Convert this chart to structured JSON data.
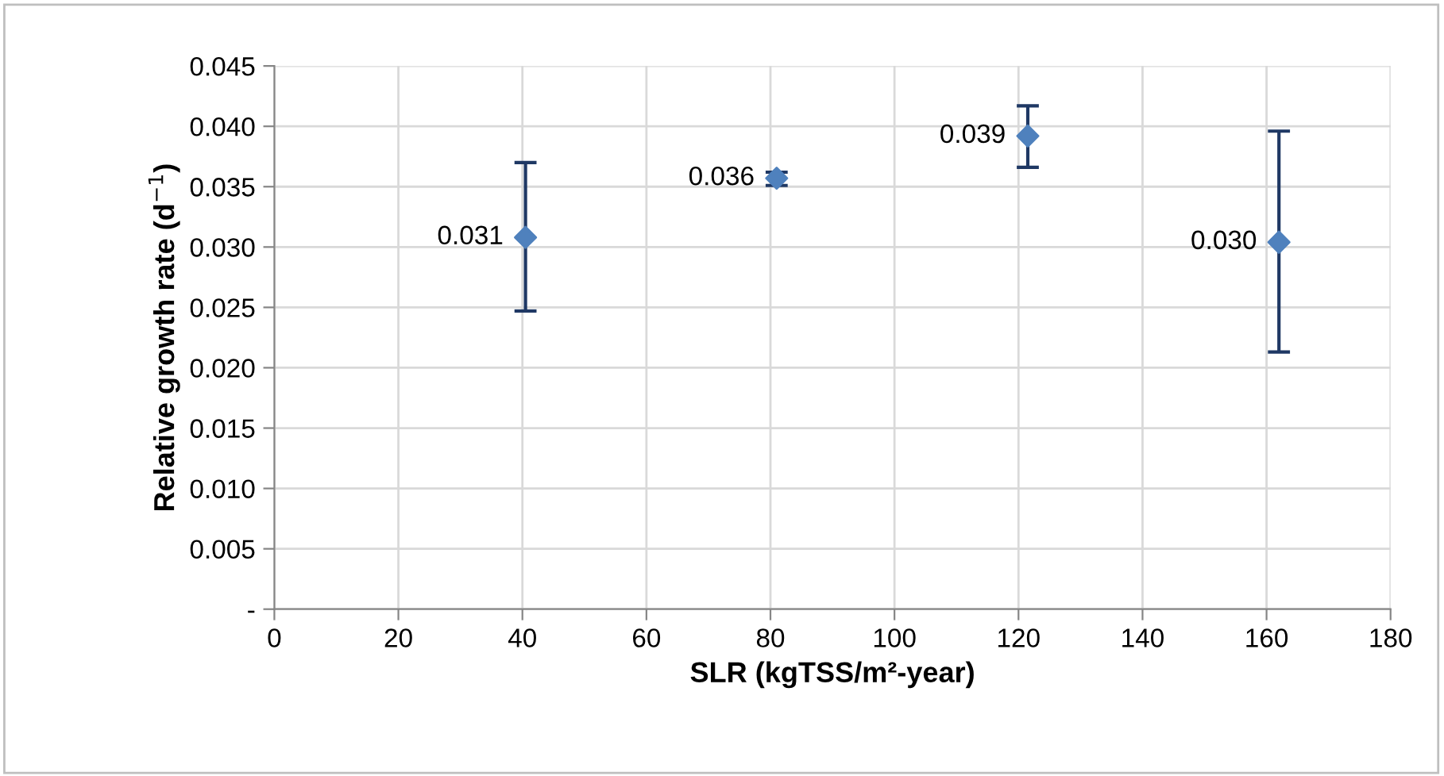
{
  "chart_data": {
    "type": "scatter",
    "xlabel": "SLR (kgTSS/m²-year)",
    "ylabel": "Relative growth rate (d$^{−1}$)",
    "x": [
      40.5,
      81.0,
      121.5,
      162.0
    ],
    "series": [
      {
        "color": "#4f81bd",
        "values": [
          0.0308,
          0.0357,
          0.0392,
          0.0304
        ],
        "errors": [
          [
            0.0247,
            0.037
          ],
          [
            0.0351,
            0.0362
          ],
          [
            0.0366,
            0.0417
          ],
          [
            0.0213,
            0.0396
          ]
        ],
        "value_labels": [
          "0.031",
          "0.036",
          "0.039",
          "0.030"
        ]
      }
    ],
    "xlim": [
      0,
      180
    ],
    "xticks": [
      0,
      20,
      40,
      60,
      80,
      100,
      120,
      140,
      160,
      180
    ],
    "ylim": [
      0,
      0.045
    ],
    "yticks": [
      {
        "value": 0,
        "label": "-"
      },
      {
        "value": 0.005,
        "label": "0.005"
      },
      {
        "value": 0.01,
        "label": "0.010"
      },
      {
        "value": 0.015,
        "label": "0.015"
      },
      {
        "value": 0.02,
        "label": "0.020"
      },
      {
        "value": 0.025,
        "label": "0.025"
      },
      {
        "value": 0.03,
        "label": "0.030"
      },
      {
        "value": 0.035,
        "label": "0.035"
      },
      {
        "value": 0.04,
        "label": "0.040"
      },
      {
        "value": 0.045,
        "label": "0.045"
      }
    ],
    "grid": true,
    "marker": "diamond",
    "legend": false
  }
}
